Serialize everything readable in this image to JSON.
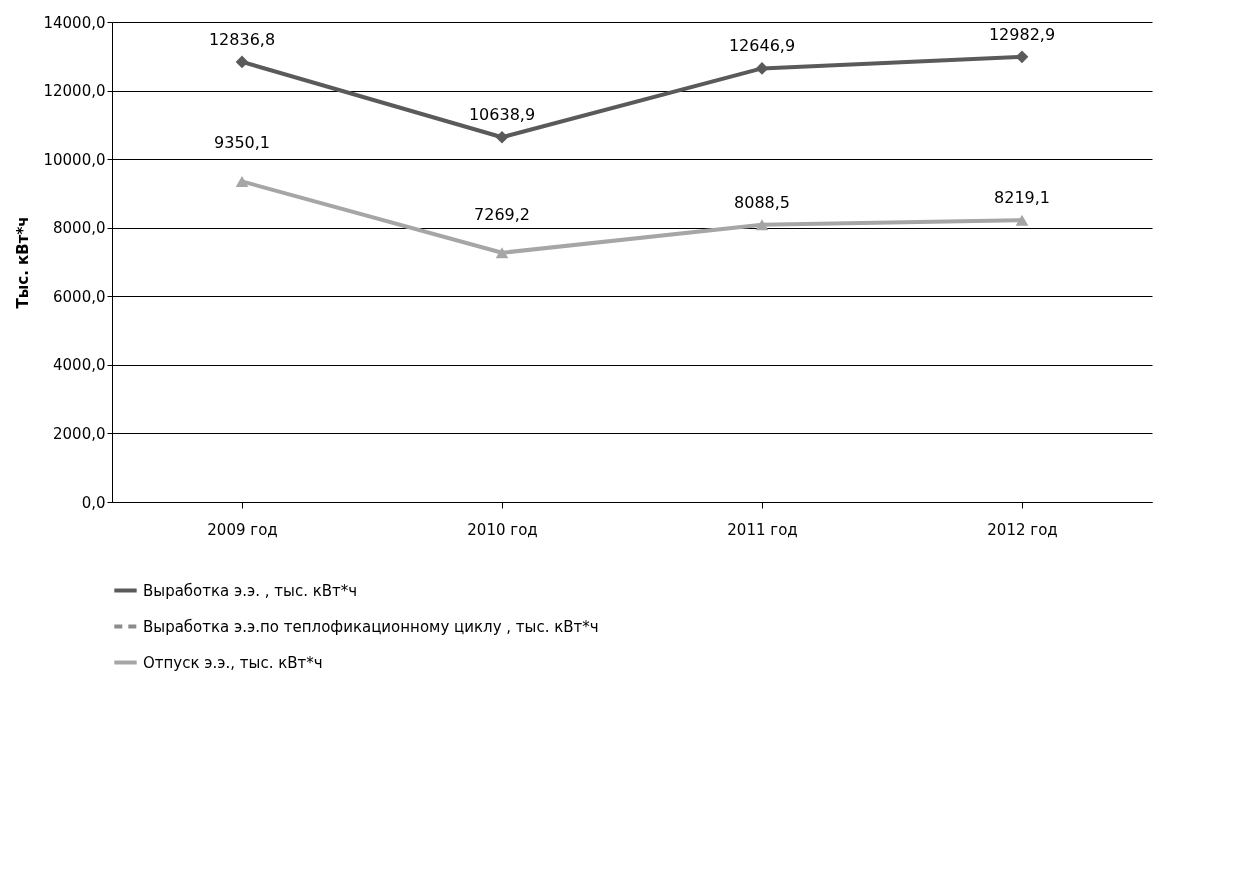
{
  "chart_data": {
    "type": "line",
    "ylabel": "Тыс. кВт*ч",
    "categories": [
      "2009 год",
      "2010 год",
      "2011 год",
      "2012 год"
    ],
    "series": [
      {
        "name": "Выработка э.э. , тыс. кВт*ч",
        "color": "#5a5a5a",
        "marker": "diamond",
        "line_style": "solid",
        "values": [
          12836.8,
          10638.9,
          12646.9,
          12982.9
        ],
        "value_labels": [
          "12836,8",
          "10638,9",
          "12646,9",
          "12982,9"
        ]
      },
      {
        "name": "Выработка э.э.по теплофикационному циклу , тыс. кВт*ч",
        "color": "#8c8c8c",
        "marker": "none",
        "line_style": "dashed",
        "values": [
          null,
          null,
          null,
          null
        ]
      },
      {
        "name": "Отпуск э.э., тыс. кВт*ч",
        "color": "#a6a6a6",
        "marker": "triangle",
        "line_style": "solid",
        "values": [
          9350.1,
          7269.2,
          8088.5,
          8219.1
        ],
        "value_labels": [
          "9350,1",
          "7269,2",
          "8088,5",
          "8219,1"
        ]
      }
    ],
    "ylim": [
      0,
      14000
    ],
    "yticks": [
      {
        "value": 0,
        "label": "0,0"
      },
      {
        "value": 2000,
        "label": "2000,0"
      },
      {
        "value": 4000,
        "label": "4000,0"
      },
      {
        "value": 6000,
        "label": "6000,0"
      },
      {
        "value": 8000,
        "label": "8000,0"
      },
      {
        "value": 10000,
        "label": "10000,0"
      },
      {
        "value": 12000,
        "label": "12000,0"
      },
      {
        "value": 14000,
        "label": "14000,0"
      }
    ],
    "grid": "y",
    "legend": "bottom"
  }
}
